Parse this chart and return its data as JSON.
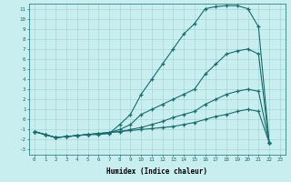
{
  "xlabel": "Humidex (Indice chaleur)",
  "bg_color": "#c8eef0",
  "grid_color": "#a0d0d0",
  "line_color": "#1a6b6b",
  "xlim": [
    -0.5,
    23.5
  ],
  "ylim": [
    -3.5,
    11.5
  ],
  "xticks": [
    0,
    1,
    2,
    3,
    4,
    5,
    6,
    7,
    8,
    9,
    10,
    11,
    12,
    13,
    14,
    15,
    16,
    17,
    18,
    19,
    20,
    21,
    22,
    23
  ],
  "yticks": [
    -3,
    -2,
    -1,
    0,
    1,
    2,
    3,
    4,
    5,
    6,
    7,
    8,
    9,
    10,
    11
  ],
  "curves": [
    [
      0,
      1,
      2,
      3,
      4,
      5,
      6,
      7,
      8,
      9,
      10,
      11,
      12,
      13,
      14,
      15,
      16,
      17,
      18,
      19,
      20,
      21,
      22
    ],
    [
      -1.2,
      -1.5,
      -1.8,
      -1.7,
      -1.6,
      -1.5,
      -1.5,
      -1.4,
      -0.5,
      0.5,
      2.5,
      4.0,
      5.5,
      7.0,
      8.5,
      9.5,
      11.0,
      11.2,
      11.3,
      11.3,
      11.0,
      9.2,
      -2.3
    ],
    [
      -1.2,
      -1.5,
      -1.8,
      -1.7,
      -1.6,
      -1.5,
      -1.4,
      -1.3,
      -1.0,
      -0.5,
      0.5,
      1.0,
      1.5,
      2.0,
      2.5,
      3.0,
      4.5,
      5.5,
      6.5,
      6.8,
      7.0,
      6.5,
      -2.3
    ],
    [
      -1.2,
      -1.5,
      -1.8,
      -1.7,
      -1.6,
      -1.5,
      -1.4,
      -1.3,
      -1.2,
      -1.0,
      -0.8,
      -0.5,
      -0.2,
      0.2,
      0.5,
      0.8,
      1.5,
      2.0,
      2.5,
      2.8,
      3.0,
      2.8,
      -2.3
    ],
    [
      -1.2,
      -1.5,
      -1.8,
      -1.7,
      -1.6,
      -1.5,
      -1.4,
      -1.3,
      -1.2,
      -1.1,
      -1.0,
      -0.9,
      -0.8,
      -0.7,
      -0.5,
      -0.3,
      0.0,
      0.3,
      0.5,
      0.8,
      1.0,
      0.8,
      -2.3
    ]
  ]
}
